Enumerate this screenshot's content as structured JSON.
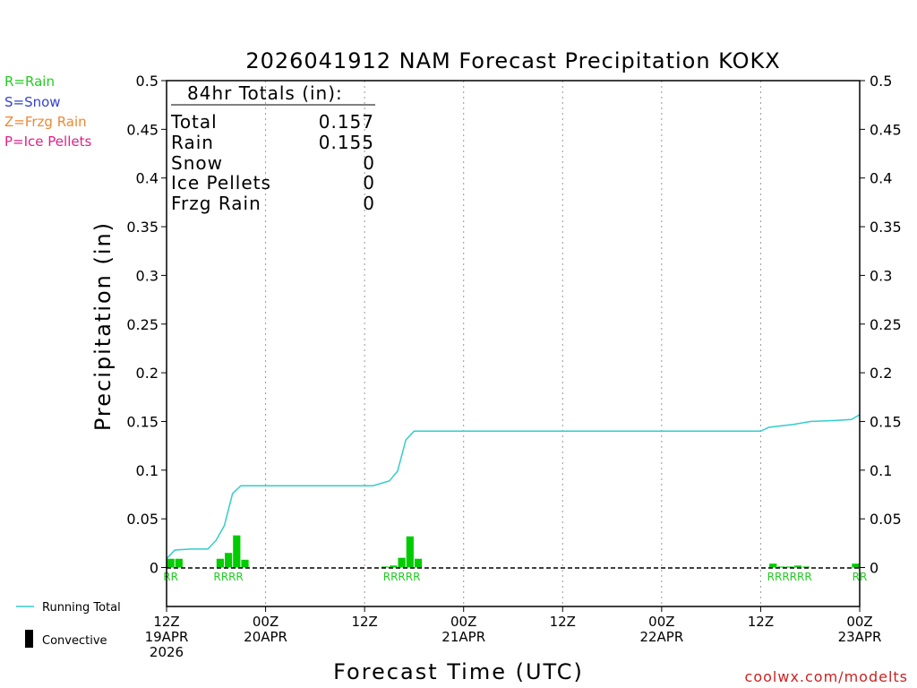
{
  "chart_data": {
    "type": "bar",
    "title": "2026041912 NAM Forecast Precipitation KOKX",
    "xlabel": "Forecast Time (UTC)",
    "ylabel": "Precipitation (in)",
    "ylim": [
      -0.04,
      0.5
    ],
    "xlim_hours": [
      0,
      84
    ],
    "grid": "vertical dotted at 12-hour ticks",
    "y_ticks": [
      {
        "v": 0,
        "label": "0"
      },
      {
        "v": 0.05,
        "label": "0.05"
      },
      {
        "v": 0.1,
        "label": "0.1"
      },
      {
        "v": 0.15,
        "label": "0.15"
      },
      {
        "v": 0.2,
        "label": "0.2"
      },
      {
        "v": 0.25,
        "label": "0.25"
      },
      {
        "v": 0.3,
        "label": "0.3"
      },
      {
        "v": 0.35,
        "label": "0.35"
      },
      {
        "v": 0.4,
        "label": "0.4"
      },
      {
        "v": 0.45,
        "label": "0.45"
      },
      {
        "v": 0.5,
        "label": "0.5"
      }
    ],
    "x_ticks": [
      {
        "h": 0,
        "lines": [
          "12Z",
          "19APR",
          "2026"
        ]
      },
      {
        "h": 12,
        "lines": [
          "00Z",
          "20APR"
        ]
      },
      {
        "h": 24,
        "lines": [
          "12Z"
        ]
      },
      {
        "h": 36,
        "lines": [
          "00Z",
          "21APR"
        ]
      },
      {
        "h": 48,
        "lines": [
          "12Z"
        ]
      },
      {
        "h": 60,
        "lines": [
          "00Z",
          "22APR"
        ]
      },
      {
        "h": 72,
        "lines": [
          "12Z"
        ]
      },
      {
        "h": 84,
        "lines": [
          "00Z",
          "23APR"
        ]
      }
    ],
    "series": [
      {
        "name": "Convective",
        "type": "bar",
        "color": "#00cc00",
        "bars": [
          {
            "h": 0,
            "v": 0.009
          },
          {
            "h": 1,
            "v": 0.009
          },
          {
            "h": 6,
            "v": 0.009
          },
          {
            "h": 7,
            "v": 0.015
          },
          {
            "h": 8,
            "v": 0.033
          },
          {
            "h": 9,
            "v": 0.008
          },
          {
            "h": 26,
            "v": 0.001
          },
          {
            "h": 27,
            "v": 0.002
          },
          {
            "h": 28,
            "v": 0.01
          },
          {
            "h": 29,
            "v": 0.032
          },
          {
            "h": 30,
            "v": 0.009
          },
          {
            "h": 73,
            "v": 0.004
          },
          {
            "h": 74,
            "v": 0.001
          },
          {
            "h": 75,
            "v": 0.001
          },
          {
            "h": 76,
            "v": 0.002
          },
          {
            "h": 77,
            "v": 0.001
          },
          {
            "h": 83,
            "v": 0.004
          }
        ]
      },
      {
        "name": "Running Total",
        "type": "line",
        "color": "#33cccc",
        "points": [
          {
            "h": 0,
            "v": 0.009
          },
          {
            "h": 1,
            "v": 0.018
          },
          {
            "h": 3,
            "v": 0.019
          },
          {
            "h": 5,
            "v": 0.019
          },
          {
            "h": 6,
            "v": 0.028
          },
          {
            "h": 7,
            "v": 0.043
          },
          {
            "h": 8,
            "v": 0.076
          },
          {
            "h": 9,
            "v": 0.084
          },
          {
            "h": 25,
            "v": 0.084
          },
          {
            "h": 27,
            "v": 0.089
          },
          {
            "h": 28,
            "v": 0.099
          },
          {
            "h": 29,
            "v": 0.131
          },
          {
            "h": 30,
            "v": 0.14
          },
          {
            "h": 72,
            "v": 0.14
          },
          {
            "h": 73,
            "v": 0.144
          },
          {
            "h": 74,
            "v": 0.145
          },
          {
            "h": 76,
            "v": 0.147
          },
          {
            "h": 78,
            "v": 0.15
          },
          {
            "h": 81,
            "v": 0.151
          },
          {
            "h": 83,
            "v": 0.152
          },
          {
            "h": 84,
            "v": 0.157
          }
        ]
      }
    ],
    "ptype_labels": [
      {
        "h": 0.5,
        "text": "RR"
      },
      {
        "h": 7.5,
        "text": "RRRR"
      },
      {
        "h": 28.5,
        "text": "RRRRR"
      },
      {
        "h": 75.5,
        "text": "RRRRRR"
      },
      {
        "h": 84,
        "text": "RR"
      }
    ]
  },
  "legend_ptype": [
    {
      "text": "R=Rain",
      "color": "#22cc22"
    },
    {
      "text": "S=Snow",
      "color": "#3344cc"
    },
    {
      "text": "Z=Frzg Rain",
      "color": "#ee8833"
    },
    {
      "text": "P=Ice Pellets",
      "color": "#dd2288"
    }
  ],
  "legend_series": {
    "running_total": "Running Total",
    "convective": "Convective"
  },
  "totals_box": {
    "header": "84hr Totals (in):",
    "rows": [
      {
        "label": "Total",
        "value": "0.157"
      },
      {
        "label": "Rain",
        "value": "0.155"
      },
      {
        "label": "Snow",
        "value": "0"
      },
      {
        "label": "Ice Pellets",
        "value": "0"
      },
      {
        "label": "Frzg Rain",
        "value": "0"
      }
    ]
  },
  "credit": "coolwx.com/modelts",
  "colors": {
    "credit": "#cc2222",
    "axis": "#000000",
    "grid": "#888888"
  }
}
